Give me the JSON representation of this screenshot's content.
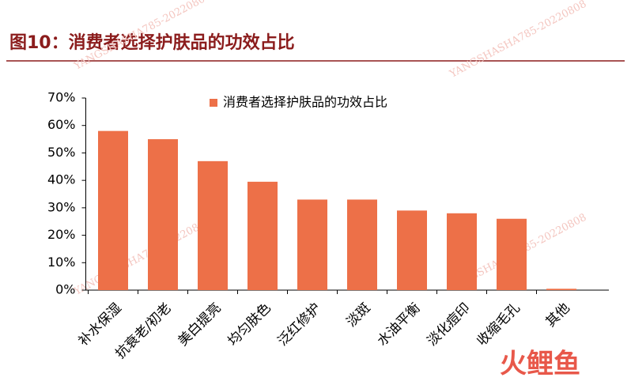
{
  "chart_data": {
    "type": "bar",
    "title": "图10：消费者选择护肤品的功效占比",
    "categories": [
      "补水保湿",
      "抗衰老/初老",
      "美白提亮",
      "均匀肤色",
      "泛红修护",
      "淡斑",
      "水油平衡",
      "淡化痘印",
      "收缩毛孔",
      "其他"
    ],
    "series": [
      {
        "name": "消费者选择护肤品的功效占比",
        "color": "#ed7048",
        "values": [
          58,
          55,
          47,
          39.5,
          33,
          33,
          29,
          28,
          26,
          0.5
        ]
      }
    ],
    "ylim": [
      0,
      70
    ],
    "yticks": [
      {
        "value": 0,
        "label": "0%"
      },
      {
        "value": 10,
        "label": "10%"
      },
      {
        "value": 20,
        "label": "20%"
      },
      {
        "value": 30,
        "label": "30%"
      },
      {
        "value": 40,
        "label": "40%"
      },
      {
        "value": 50,
        "label": "50%"
      },
      {
        "value": 60,
        "label": "60%"
      },
      {
        "value": 70,
        "label": "70%"
      }
    ],
    "grid": false,
    "watermark": "YANGSHASHA785-20220808",
    "logo": "火鲤鱼"
  }
}
